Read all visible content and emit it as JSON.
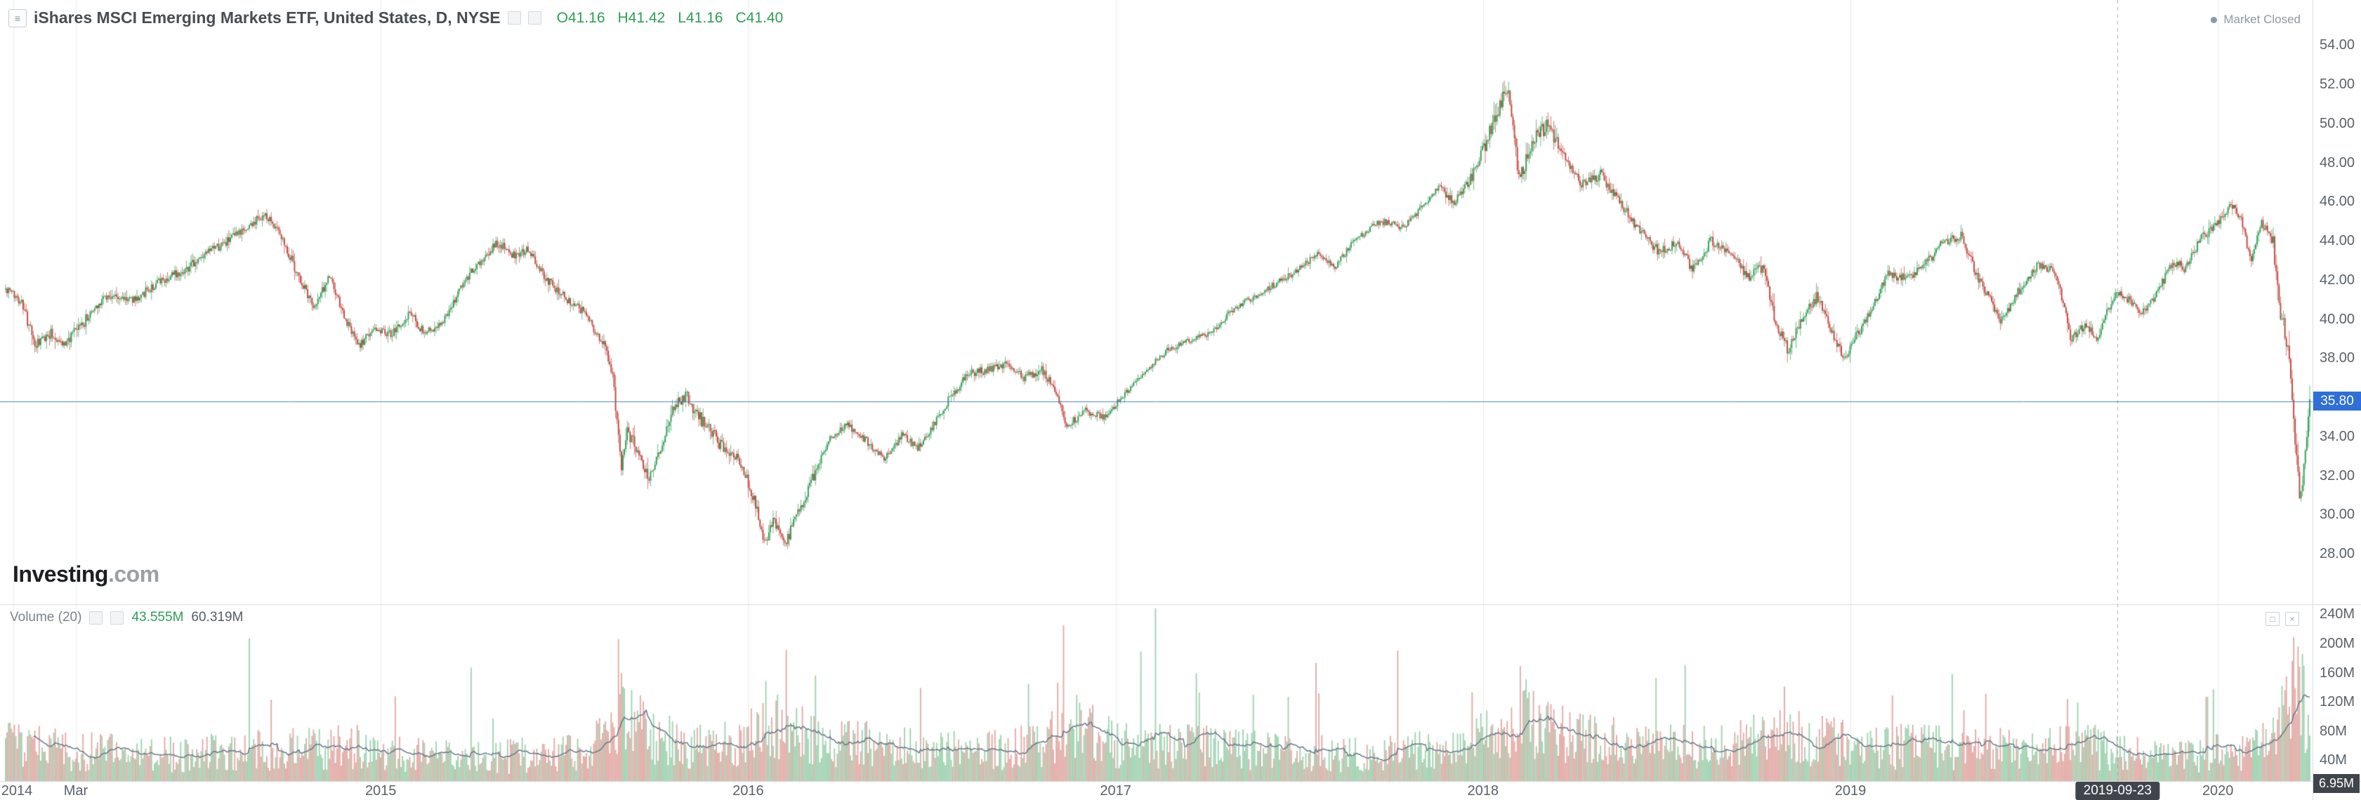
{
  "header": {
    "symbol_title": "iShares MSCI Emerging Markets ETF, United States, D, NYSE",
    "ohlc": {
      "open": "O41.16",
      "high": "H41.42",
      "low": "L41.16",
      "close": "C41.40"
    },
    "market_status": "Market Closed"
  },
  "logo": {
    "name": "Investing",
    "tld": ".com"
  },
  "volume_pane": {
    "label": "Volume (20)",
    "volume_value": "43.555M",
    "ma_value": "60.319M"
  },
  "last_price": {
    "label": "35.80",
    "value": 35.8
  },
  "crosshair": {
    "date_label": "2019-09-23",
    "t": 2019.727,
    "volume_label": "6.95M"
  },
  "axes": {
    "price_ticks": [
      {
        "label": "54.00",
        "value": 54
      },
      {
        "label": "52.00",
        "value": 52
      },
      {
        "label": "50.00",
        "value": 50
      },
      {
        "label": "48.00",
        "value": 48
      },
      {
        "label": "46.00",
        "value": 46
      },
      {
        "label": "44.00",
        "value": 44
      },
      {
        "label": "42.00",
        "value": 42
      },
      {
        "label": "40.00",
        "value": 40
      },
      {
        "label": "38.00",
        "value": 38
      },
      {
        "label": "34.00",
        "value": 34
      },
      {
        "label": "32.00",
        "value": 32
      },
      {
        "label": "30.00",
        "value": 30
      },
      {
        "label": "28.00",
        "value": 28
      }
    ],
    "volume_ticks": [
      {
        "label": "240M",
        "value": 240
      },
      {
        "label": "200M",
        "value": 200
      },
      {
        "label": "160M",
        "value": 160
      },
      {
        "label": "120M",
        "value": 120
      },
      {
        "label": "80M",
        "value": 80
      },
      {
        "label": "40M",
        "value": 40
      }
    ],
    "time_ticks": [
      {
        "label": "2014",
        "t": 2014.0
      },
      {
        "label": "Mar",
        "t": 2014.17
      },
      {
        "label": "2015",
        "t": 2015.0
      },
      {
        "label": "2016",
        "t": 2016.0
      },
      {
        "label": "2017",
        "t": 2017.0
      },
      {
        "label": "2018",
        "t": 2018.0
      },
      {
        "label": "2019",
        "t": 2019.0
      },
      {
        "label": "2020",
        "t": 2020.0
      }
    ]
  },
  "colors": {
    "up": "#2f9e54",
    "down": "#c0463c",
    "volume_up": "rgba(47,158,84,0.45)",
    "volume_down": "rgba(192,70,60,0.45)",
    "ma_line": "#6a7a88",
    "last_price": "#2e6fd8",
    "crosshair_tag": "#40454c",
    "grid": "#e9edf0",
    "separator": "#d6dade",
    "crosshair_line": "#a6b0ba"
  },
  "chart_data": {
    "type": "candlestick",
    "title": "iShares MSCI Emerging Markets ETF, United States, D, NYSE",
    "x_domain": [
      2013.979,
      2020.25
    ],
    "bars": 1580,
    "y_axis": {
      "min": 28,
      "max": 54,
      "step": 2
    },
    "volume_axis": {
      "min": 40,
      "max": 240,
      "step": 40,
      "unit": "M"
    },
    "last_price": 35.8,
    "hovered_bar": {
      "date": "2019-09-23",
      "o": 41.16,
      "h": 41.42,
      "l": 41.16,
      "c": 41.4
    },
    "price_anchors": [
      [
        2013.98,
        41.5
      ],
      [
        2014.02,
        41.0
      ],
      [
        2014.06,
        38.6
      ],
      [
        2014.1,
        39.3
      ],
      [
        2014.14,
        38.7
      ],
      [
        2014.19,
        39.8
      ],
      [
        2014.25,
        41.2
      ],
      [
        2014.33,
        41.0
      ],
      [
        2014.4,
        41.9
      ],
      [
        2014.48,
        42.7
      ],
      [
        2014.55,
        43.6
      ],
      [
        2014.62,
        44.4
      ],
      [
        2014.68,
        45.3
      ],
      [
        2014.72,
        44.7
      ],
      [
        2014.78,
        42.0
      ],
      [
        2014.82,
        40.6
      ],
      [
        2014.86,
        42.2
      ],
      [
        2014.9,
        40.1
      ],
      [
        2014.94,
        38.6
      ],
      [
        2014.98,
        39.5
      ],
      [
        2015.03,
        39.2
      ],
      [
        2015.08,
        40.3
      ],
      [
        2015.12,
        39.2
      ],
      [
        2015.17,
        39.9
      ],
      [
        2015.25,
        42.6
      ],
      [
        2015.32,
        43.9
      ],
      [
        2015.36,
        43.2
      ],
      [
        2015.4,
        43.6
      ],
      [
        2015.45,
        42.1
      ],
      [
        2015.5,
        41.1
      ],
      [
        2015.55,
        40.4
      ],
      [
        2015.6,
        38.9
      ],
      [
        2015.63,
        37.3
      ],
      [
        2015.645,
        34.2
      ],
      [
        2015.655,
        32.4
      ],
      [
        2015.67,
        34.3
      ],
      [
        2015.7,
        33.2
      ],
      [
        2015.73,
        31.9
      ],
      [
        2015.76,
        33.3
      ],
      [
        2015.8,
        35.6
      ],
      [
        2015.83,
        36.1
      ],
      [
        2015.86,
        35.1
      ],
      [
        2015.9,
        34.3
      ],
      [
        2015.94,
        33.1
      ],
      [
        2015.98,
        32.7
      ],
      [
        2016.02,
        30.6
      ],
      [
        2016.045,
        28.5
      ],
      [
        2016.07,
        29.7
      ],
      [
        2016.1,
        28.4
      ],
      [
        2016.13,
        29.9
      ],
      [
        2016.17,
        31.6
      ],
      [
        2016.22,
        33.9
      ],
      [
        2016.27,
        34.6
      ],
      [
        2016.32,
        33.8
      ],
      [
        2016.37,
        32.8
      ],
      [
        2016.42,
        34.1
      ],
      [
        2016.46,
        33.4
      ],
      [
        2016.5,
        34.4
      ],
      [
        2016.55,
        36.0
      ],
      [
        2016.6,
        37.2
      ],
      [
        2016.65,
        37.4
      ],
      [
        2016.7,
        37.7
      ],
      [
        2016.75,
        37.0
      ],
      [
        2016.8,
        37.4
      ],
      [
        2016.84,
        36.2
      ],
      [
        2016.865,
        34.5
      ],
      [
        2016.92,
        35.3
      ],
      [
        2016.97,
        35.0
      ],
      [
        2017.03,
        36.3
      ],
      [
        2017.08,
        37.3
      ],
      [
        2017.14,
        38.4
      ],
      [
        2017.2,
        38.9
      ],
      [
        2017.26,
        39.3
      ],
      [
        2017.32,
        40.5
      ],
      [
        2017.4,
        41.4
      ],
      [
        2017.48,
        42.3
      ],
      [
        2017.55,
        43.3
      ],
      [
        2017.6,
        42.7
      ],
      [
        2017.65,
        44.0
      ],
      [
        2017.72,
        45.0
      ],
      [
        2017.78,
        44.7
      ],
      [
        2017.83,
        45.6
      ],
      [
        2017.88,
        46.8
      ],
      [
        2017.92,
        45.9
      ],
      [
        2017.97,
        47.3
      ],
      [
        2018.02,
        49.6
      ],
      [
        2018.065,
        51.9
      ],
      [
        2018.1,
        47.1
      ],
      [
        2018.14,
        49.3
      ],
      [
        2018.18,
        49.9
      ],
      [
        2018.22,
        48.3
      ],
      [
        2018.27,
        46.9
      ],
      [
        2018.32,
        47.4
      ],
      [
        2018.37,
        46.0
      ],
      [
        2018.42,
        44.7
      ],
      [
        2018.48,
        43.4
      ],
      [
        2018.53,
        43.9
      ],
      [
        2018.57,
        42.5
      ],
      [
        2018.62,
        44.0
      ],
      [
        2018.67,
        43.5
      ],
      [
        2018.72,
        42.1
      ],
      [
        2018.76,
        42.7
      ],
      [
        2018.8,
        39.6
      ],
      [
        2018.83,
        38.4
      ],
      [
        2018.87,
        40.2
      ],
      [
        2018.91,
        41.2
      ],
      [
        2018.94,
        39.9
      ],
      [
        2018.98,
        38.0
      ],
      [
        2019.02,
        39.2
      ],
      [
        2019.06,
        40.5
      ],
      [
        2019.1,
        42.3
      ],
      [
        2019.15,
        42.1
      ],
      [
        2019.2,
        42.7
      ],
      [
        2019.25,
        43.9
      ],
      [
        2019.3,
        44.3
      ],
      [
        2019.35,
        42.0
      ],
      [
        2019.41,
        39.9
      ],
      [
        2019.46,
        41.5
      ],
      [
        2019.51,
        42.8
      ],
      [
        2019.56,
        42.4
      ],
      [
        2019.6,
        39.0
      ],
      [
        2019.64,
        39.7
      ],
      [
        2019.67,
        39.0
      ],
      [
        2019.71,
        40.9
      ],
      [
        2019.727,
        41.4
      ],
      [
        2019.76,
        40.9
      ],
      [
        2019.8,
        40.3
      ],
      [
        2019.84,
        41.6
      ],
      [
        2019.88,
        42.9
      ],
      [
        2019.91,
        42.6
      ],
      [
        2019.95,
        44.0
      ],
      [
        2019.99,
        44.8
      ],
      [
        2020.045,
        45.9
      ],
      [
        2020.07,
        44.7
      ],
      [
        2020.09,
        42.7
      ],
      [
        2020.115,
        44.9
      ],
      [
        2020.15,
        44.1
      ],
      [
        2020.17,
        40.3
      ],
      [
        2020.19,
        38.6
      ],
      [
        2020.21,
        34.0
      ],
      [
        2020.222,
        31.2
      ],
      [
        2020.228,
        30.9
      ],
      [
        2020.236,
        33.2
      ],
      [
        2020.244,
        34.6
      ],
      [
        2020.25,
        35.8
      ]
    ],
    "volume_anchors": [
      [
        2013.98,
        60
      ],
      [
        2014.15,
        52
      ],
      [
        2014.45,
        46
      ],
      [
        2014.75,
        55
      ],
      [
        2014.95,
        58
      ],
      [
        2015.1,
        48
      ],
      [
        2015.35,
        45
      ],
      [
        2015.58,
        55
      ],
      [
        2015.65,
        105
      ],
      [
        2015.75,
        68
      ],
      [
        2015.9,
        55
      ],
      [
        2016.0,
        70
      ],
      [
        2016.06,
        88
      ],
      [
        2016.2,
        66
      ],
      [
        2016.4,
        58
      ],
      [
        2016.6,
        52
      ],
      [
        2016.8,
        60
      ],
      [
        2016.87,
        92
      ],
      [
        2017.0,
        62
      ],
      [
        2017.25,
        56
      ],
      [
        2017.5,
        50
      ],
      [
        2017.75,
        48
      ],
      [
        2017.95,
        58
      ],
      [
        2018.05,
        78
      ],
      [
        2018.12,
        92
      ],
      [
        2018.25,
        68
      ],
      [
        2018.45,
        62
      ],
      [
        2018.65,
        58
      ],
      [
        2018.8,
        72
      ],
      [
        2018.95,
        65
      ],
      [
        2019.1,
        58
      ],
      [
        2019.3,
        56
      ],
      [
        2019.5,
        52
      ],
      [
        2019.62,
        62
      ],
      [
        2019.75,
        48
      ],
      [
        2019.9,
        44
      ],
      [
        2020.0,
        50
      ],
      [
        2020.1,
        55
      ],
      [
        2020.16,
        75
      ],
      [
        2020.2,
        130
      ],
      [
        2020.23,
        135
      ],
      [
        2020.245,
        80
      ],
      [
        2020.25,
        60
      ]
    ],
    "volume_spikes": [
      [
        2014.7,
        122
      ],
      [
        2015.648,
        205
      ],
      [
        2016.05,
        148
      ],
      [
        2016.47,
        138
      ],
      [
        2016.858,
        224
      ],
      [
        2017.07,
        188
      ],
      [
        2017.22,
        158
      ],
      [
        2017.47,
        126
      ],
      [
        2017.97,
        132
      ],
      [
        2018.1,
        168
      ],
      [
        2018.118,
        150
      ],
      [
        2018.47,
        152
      ],
      [
        2018.82,
        140
      ],
      [
        2019.115,
        128
      ],
      [
        2019.37,
        130
      ],
      [
        2019.62,
        118
      ],
      [
        2019.97,
        126
      ],
      [
        2020.205,
        208
      ],
      [
        2020.218,
        195
      ],
      [
        2020.232,
        185
      ]
    ],
    "volatility_windows": [
      {
        "from": 2014.0,
        "to": 2014.2,
        "mult": 1.3
      },
      {
        "from": 2015.6,
        "to": 2016.2,
        "mult": 1.7
      },
      {
        "from": 2017.0,
        "to": 2017.9,
        "mult": 0.7
      },
      {
        "from": 2018.0,
        "to": 2018.22,
        "mult": 1.5
      },
      {
        "from": 2018.75,
        "to": 2019.02,
        "mult": 1.3
      },
      {
        "from": 2020.14,
        "to": 2020.26,
        "mult": 2.2
      }
    ]
  }
}
